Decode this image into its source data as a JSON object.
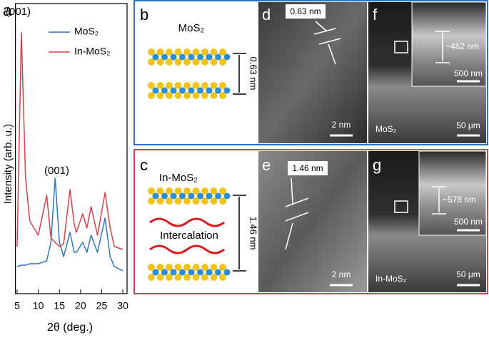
{
  "chart_data": {
    "type": "line",
    "panel_label": "a",
    "xlabel": "2θ (deg.)",
    "ylabel": "Intensity (arb. u.)",
    "x": [
      5,
      6,
      7,
      8,
      10,
      12,
      13,
      14,
      15,
      16,
      17.5,
      18.5,
      19,
      20.5,
      21.5,
      22.5,
      24,
      25.8,
      27,
      28,
      30
    ],
    "series": [
      {
        "name": "MoS₂",
        "color": "#2f74c0",
        "values": [
          9,
          9.5,
          9.5,
          10,
          10,
          11,
          17.5,
          40,
          17.5,
          12.5,
          21,
          14,
          14,
          17.5,
          14,
          20,
          14,
          26,
          12.5,
          9,
          7.5
        ]
      },
      {
        "name": "In-MoS₂",
        "color": "#d9404a",
        "values": [
          16,
          91,
          40,
          25,
          20,
          34,
          19,
          17.5,
          16,
          17,
          36,
          24,
          21,
          27.5,
          22.5,
          30,
          20,
          35,
          22.5,
          16,
          15
        ]
      }
    ],
    "annotations": [
      "(001)",
      "(001)"
    ],
    "xlim": [
      4.6,
      31
    ],
    "xticks": [
      5,
      10,
      15,
      20,
      25,
      30
    ],
    "ylim": [
      0,
      100
    ]
  },
  "panels": {
    "b": {
      "label": "b",
      "title": "MoS₂",
      "spacing": "0.63 nm"
    },
    "c": {
      "label": "c",
      "title": "In-MoS₂",
      "note": "Intercalation",
      "spacing": "1.46 nm"
    },
    "d": {
      "label": "d",
      "spacing": "0.63 nm",
      "scale": "2 nm"
    },
    "e": {
      "label": "e",
      "spacing": "1.46 nm",
      "scale": "2 nm"
    },
    "f": {
      "label": "f",
      "thickness": "~462 nm",
      "inset_scale": "500 nm",
      "sample": "MoS₂",
      "scale": "50 μm"
    },
    "g": {
      "label": "g",
      "thickness": "~578 nm",
      "inset_scale": "500 nm",
      "sample": "In-MoS₂",
      "scale": "50 μm"
    }
  }
}
